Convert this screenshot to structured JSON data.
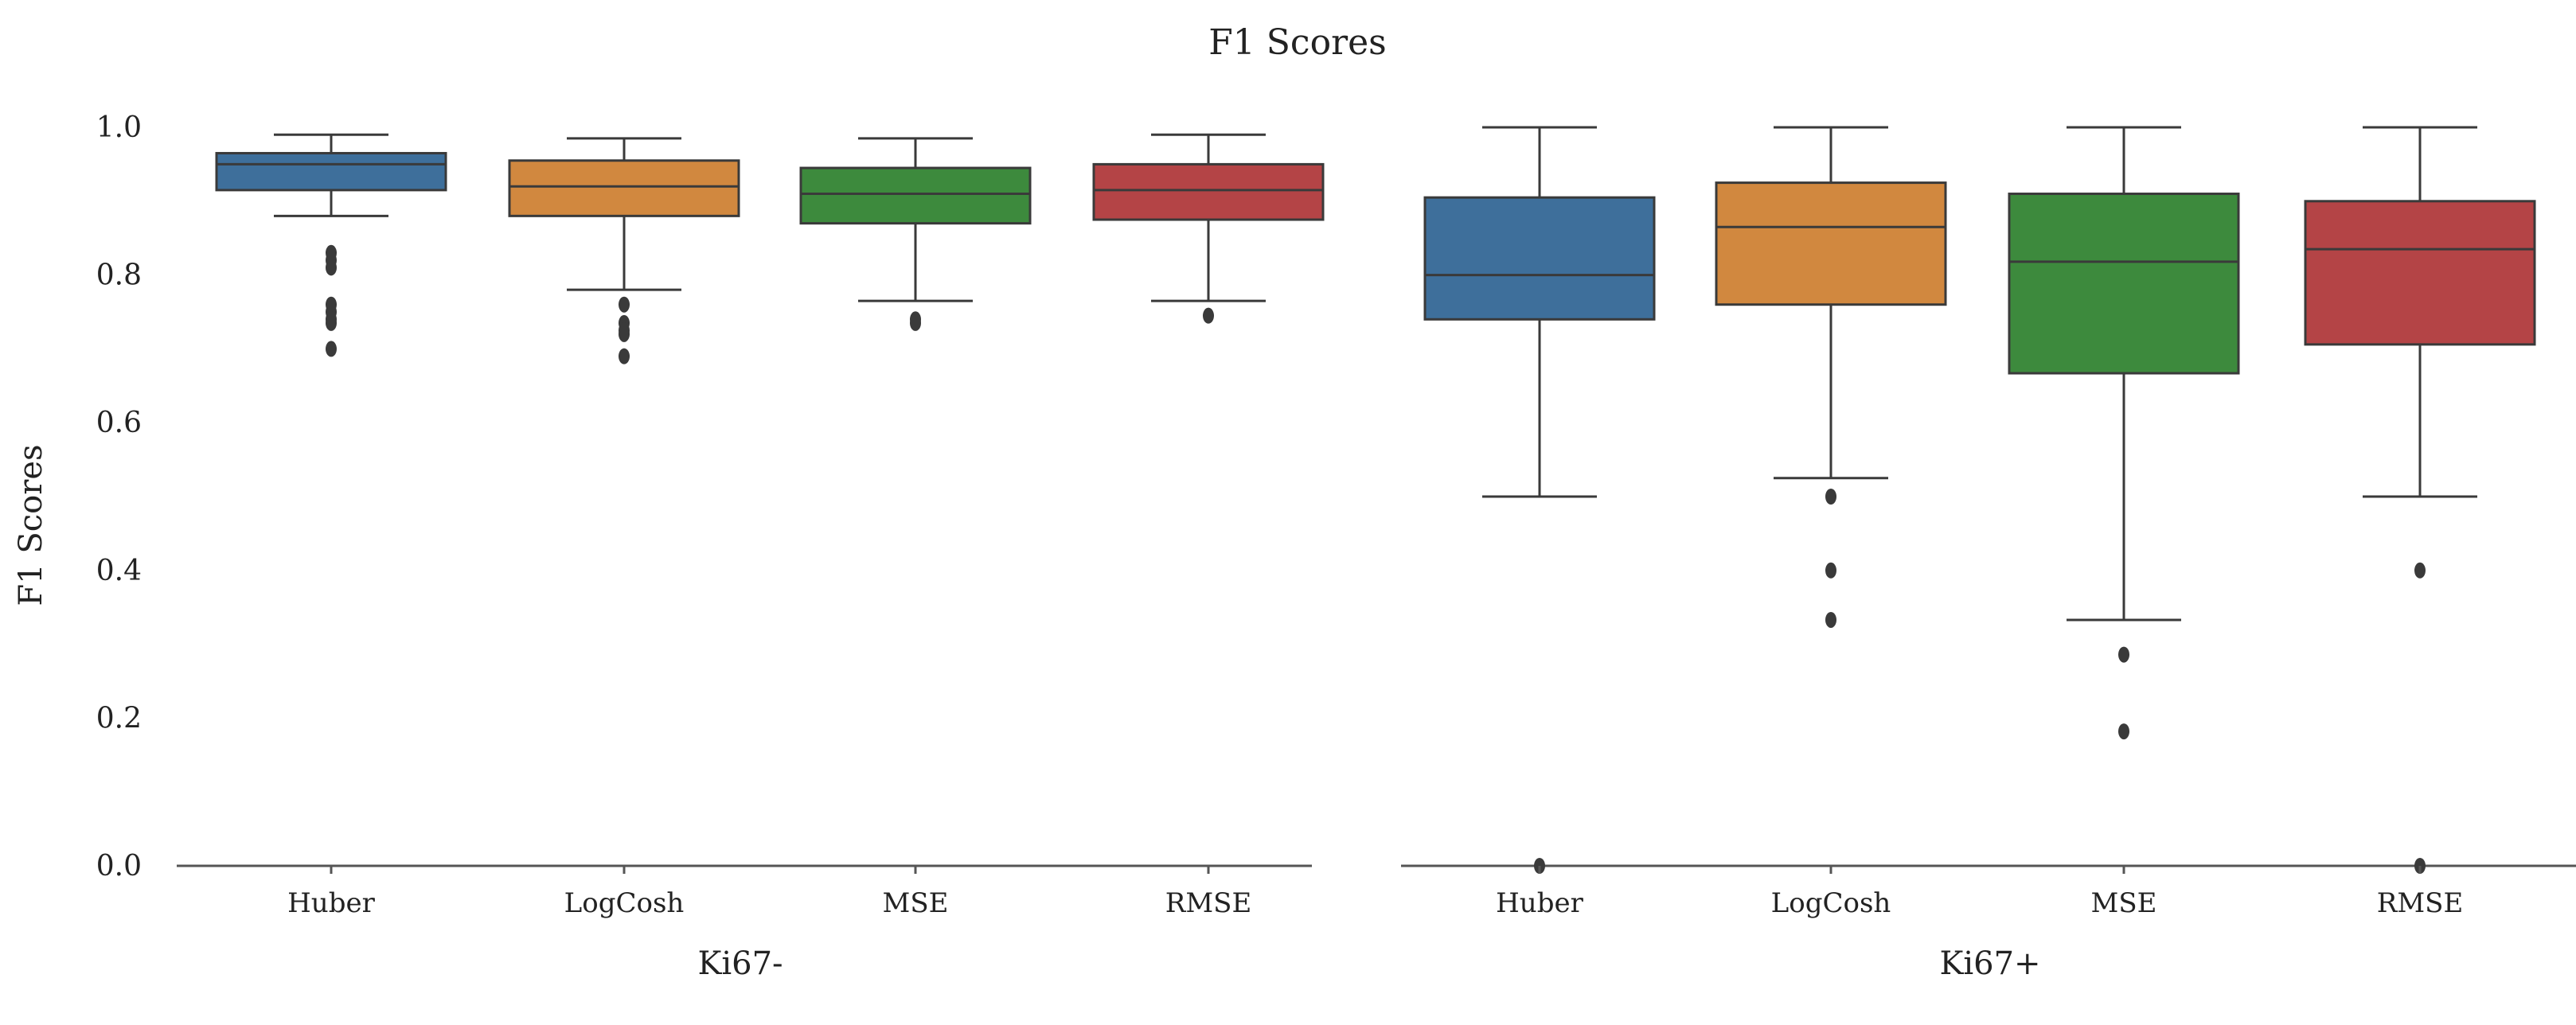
{
  "chart_data": {
    "type": "box",
    "title": "F1 Scores",
    "ylabel": "F1 Scores",
    "ylim": [
      0,
      1.0
    ],
    "yticks": [
      "0.0",
      "0.2",
      "0.4",
      "0.6",
      "0.8",
      "1.0"
    ],
    "grid": false,
    "panels": [
      {
        "label": "Ki67-",
        "categories": [
          "Huber",
          "LogCosh",
          "MSE",
          "RMSE"
        ],
        "boxes": [
          {
            "name": "Huber",
            "color": "#3e6f9b",
            "whisker_low": 0.88,
            "q1": 0.915,
            "median": 0.95,
            "q3": 0.965,
            "whisker_high": 0.99,
            "outliers": [
              0.83,
              0.82,
              0.81,
              0.76,
              0.75,
              0.74,
              0.735,
              0.7
            ]
          },
          {
            "name": "LogCosh",
            "color": "#d1883f",
            "whisker_low": 0.78,
            "q1": 0.88,
            "median": 0.92,
            "q3": 0.955,
            "whisker_high": 0.985,
            "outliers": [
              0.76,
              0.735,
              0.725,
              0.72,
              0.69
            ]
          },
          {
            "name": "MSE",
            "color": "#3d8a3d",
            "whisker_low": 0.765,
            "q1": 0.87,
            "median": 0.91,
            "q3": 0.945,
            "whisker_high": 0.985,
            "outliers": [
              0.74,
              0.735
            ]
          },
          {
            "name": "RMSE",
            "color": "#b44446",
            "whisker_low": 0.765,
            "q1": 0.875,
            "median": 0.915,
            "q3": 0.95,
            "whisker_high": 0.99,
            "outliers": [
              0.745
            ]
          }
        ]
      },
      {
        "label": "Ki67+",
        "categories": [
          "Huber",
          "LogCosh",
          "MSE",
          "RMSE"
        ],
        "boxes": [
          {
            "name": "Huber",
            "color": "#3e6f9b",
            "whisker_low": 0.5,
            "q1": 0.74,
            "median": 0.8,
            "q3": 0.905,
            "whisker_high": 1.0,
            "outliers": [
              0.0
            ]
          },
          {
            "name": "LogCosh",
            "color": "#d1883f",
            "whisker_low": 0.525,
            "q1": 0.76,
            "median": 0.865,
            "q3": 0.925,
            "whisker_high": 1.0,
            "outliers": [
              0.5,
              0.4,
              0.333
            ]
          },
          {
            "name": "MSE",
            "color": "#3d8a3d",
            "whisker_low": 0.333,
            "q1": 0.667,
            "median": 0.818,
            "q3": 0.91,
            "whisker_high": 1.0,
            "outliers": [
              0.286,
              0.182
            ]
          },
          {
            "name": "RMSE",
            "color": "#b44446",
            "whisker_low": 0.5,
            "q1": 0.706,
            "median": 0.835,
            "q3": 0.9,
            "whisker_high": 1.0,
            "outliers": [
              0.4,
              0.0
            ]
          }
        ]
      }
    ]
  }
}
